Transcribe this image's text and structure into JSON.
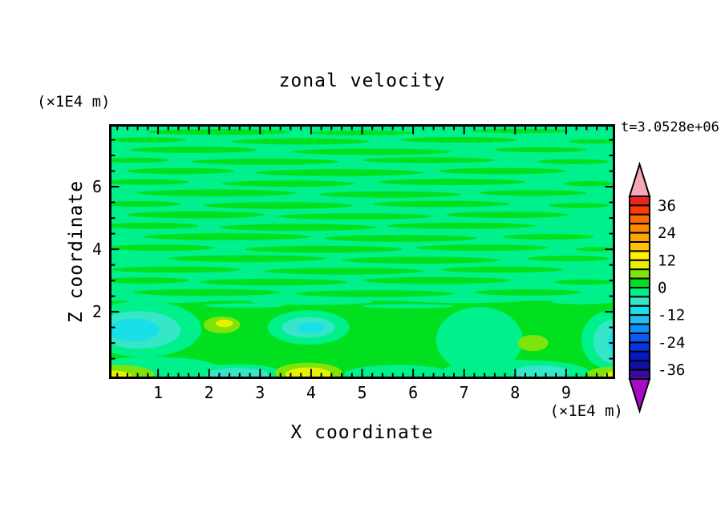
{
  "window": {
    "background": "#FFFFFF"
  },
  "chart_data": {
    "type": "filled_contour",
    "title": "zonal velocity",
    "xlabel": "X coordinate",
    "ylabel": "Z coordinate",
    "annotations": {
      "time_label": "t=3.0528e+06",
      "x_axis_unit": "(×1E4 m)",
      "y_axis_unit": "(×1E4 m)"
    },
    "axes": {
      "xlim": [
        0.04,
        9.96
      ],
      "zlim": [
        -0.15,
        8.0
      ],
      "x_major_ticks": [
        1,
        2,
        3,
        4,
        5,
        6,
        7,
        8,
        9
      ],
      "x_tick_labels": [
        "1",
        "2",
        "3",
        "4",
        "5",
        "6",
        "7",
        "8",
        "9"
      ],
      "x_minor_step": 0.2,
      "y_major_ticks": [
        2,
        4,
        6
      ],
      "y_tick_labels": [
        "2",
        "4",
        "6"
      ],
      "y_minor_step": 0.5,
      "frame_color": "#000000",
      "grid": false
    },
    "colorbar": {
      "levels_min": -40,
      "levels_max": 40,
      "step": 4,
      "labeled_values": [
        36,
        24,
        12,
        0,
        -12,
        -24,
        -36
      ],
      "labels": [
        "36",
        "24",
        "12",
        "0",
        "-12",
        "-24",
        "-36"
      ],
      "band_colors_top_to_bottom": [
        "#EE2222",
        "#FB3B00",
        "#FF6C00",
        "#FF8800",
        "#FFA600",
        "#FFC300",
        "#FFEF00",
        "#E8F200",
        "#7FE40A",
        "#00E01E",
        "#00F08C",
        "#35E6C8",
        "#18DFE8",
        "#23BFF2",
        "#0F8FF8",
        "#0A5BEF",
        "#0634E0",
        "#0519C9",
        "#140FA8",
        "#3A0C9E"
      ],
      "over_color": "#F7A8B8",
      "under_color": "#A90AC9",
      "outline_color": "#000000"
    },
    "field": {
      "background_band": -4,
      "layers": [
        {
          "band": 0,
          "shape": "rect",
          "r": [
            -0.2,
            -0.2,
            10.2,
            2.35
          ]
        },
        {
          "band": -4,
          "shape": "ellipse",
          "e": [
            1.2,
            2.38,
            0.9,
            0.1
          ]
        },
        {
          "band": -4,
          "shape": "ellipse",
          "e": [
            4.0,
            2.32,
            1.2,
            0.1
          ]
        },
        {
          "band": -4,
          "shape": "ellipse",
          "e": [
            7.0,
            2.38,
            1.25,
            0.1
          ]
        },
        {
          "band": -4,
          "shape": "ellipse",
          "e": [
            9.3,
            2.32,
            0.6,
            0.08
          ]
        },
        {
          "band": -4,
          "shape": "ellipse",
          "e": [
            2.7,
            2.2,
            0.8,
            0.07
          ]
        },
        {
          "band": -4,
          "shape": "ellipse",
          "e": [
            5.9,
            2.18,
            0.9,
            0.07
          ]
        },
        {
          "band": 0,
          "shape": "ellipse",
          "e": [
            2.2,
            7.75,
            1.4,
            0.09
          ]
        },
        {
          "band": 0,
          "shape": "ellipse",
          "e": [
            5.0,
            7.72,
            1.0,
            0.08
          ]
        },
        {
          "band": 0,
          "shape": "ellipse",
          "e": [
            8.1,
            7.78,
            0.95,
            0.07
          ]
        },
        {
          "band": 0,
          "shape": "ellipse",
          "e": [
            0.8,
            7.5,
            0.75,
            0.08
          ]
        },
        {
          "band": 0,
          "shape": "ellipse",
          "e": [
            3.8,
            7.45,
            1.35,
            0.1
          ]
        },
        {
          "band": 0,
          "shape": "ellipse",
          "e": [
            6.9,
            7.5,
            1.15,
            0.09
          ]
        },
        {
          "band": 0,
          "shape": "ellipse",
          "e": [
            9.55,
            7.45,
            0.5,
            0.07
          ]
        },
        {
          "band": 0,
          "shape": "ellipse",
          "e": [
            1.7,
            7.18,
            1.25,
            0.1
          ]
        },
        {
          "band": 0,
          "shape": "ellipse",
          "e": [
            5.2,
            7.12,
            1.55,
            0.1
          ]
        },
        {
          "band": 0,
          "shape": "ellipse",
          "e": [
            8.5,
            7.18,
            0.9,
            0.08
          ]
        },
        {
          "band": 0,
          "shape": "ellipse",
          "e": [
            0.55,
            6.85,
            0.65,
            0.08
          ]
        },
        {
          "band": 0,
          "shape": "ellipse",
          "e": [
            3.1,
            6.8,
            1.45,
            0.1
          ]
        },
        {
          "band": 0,
          "shape": "ellipse",
          "e": [
            6.3,
            6.85,
            1.3,
            0.09
          ]
        },
        {
          "band": 0,
          "shape": "ellipse",
          "e": [
            9.15,
            6.8,
            0.7,
            0.08
          ]
        },
        {
          "band": 0,
          "shape": "ellipse",
          "e": [
            1.45,
            6.5,
            1.05,
            0.1
          ]
        },
        {
          "band": 0,
          "shape": "ellipse",
          "e": [
            4.55,
            6.45,
            1.65,
            0.11
          ]
        },
        {
          "band": 0,
          "shape": "ellipse",
          "e": [
            7.75,
            6.5,
            1.25,
            0.1
          ]
        },
        {
          "band": 0,
          "shape": "ellipse",
          "e": [
            0.75,
            6.15,
            0.85,
            0.09
          ]
        },
        {
          "band": 0,
          "shape": "ellipse",
          "e": [
            3.55,
            6.1,
            1.3,
            0.1
          ]
        },
        {
          "band": 0,
          "shape": "ellipse",
          "e": [
            6.75,
            6.15,
            1.45,
            0.1
          ]
        },
        {
          "band": 0,
          "shape": "ellipse",
          "e": [
            9.45,
            6.1,
            0.5,
            0.08
          ]
        },
        {
          "band": 0,
          "shape": "ellipse",
          "e": [
            2.15,
            5.8,
            1.55,
            0.11
          ]
        },
        {
          "band": 0,
          "shape": "ellipse",
          "e": [
            5.55,
            5.75,
            1.4,
            0.1
          ]
        },
        {
          "band": 0,
          "shape": "ellipse",
          "e": [
            8.35,
            5.8,
            1.05,
            0.09
          ]
        },
        {
          "band": 0,
          "shape": "ellipse",
          "e": [
            0.65,
            5.45,
            0.8,
            0.09
          ]
        },
        {
          "band": 0,
          "shape": "ellipse",
          "e": [
            3.35,
            5.4,
            1.45,
            0.11
          ]
        },
        {
          "band": 0,
          "shape": "ellipse",
          "e": [
            6.55,
            5.45,
            1.35,
            0.1
          ]
        },
        {
          "band": 0,
          "shape": "ellipse",
          "e": [
            9.25,
            5.4,
            0.6,
            0.08
          ]
        },
        {
          "band": 0,
          "shape": "ellipse",
          "e": [
            1.75,
            5.1,
            1.35,
            0.11
          ]
        },
        {
          "band": 0,
          "shape": "ellipse",
          "e": [
            4.85,
            5.05,
            1.5,
            0.1
          ]
        },
        {
          "band": 0,
          "shape": "ellipse",
          "e": [
            7.85,
            5.1,
            1.2,
            0.1
          ]
        },
        {
          "band": 0,
          "shape": "ellipse",
          "e": [
            0.85,
            4.75,
            0.95,
            0.1
          ]
        },
        {
          "band": 0,
          "shape": "ellipse",
          "e": [
            3.75,
            4.7,
            1.55,
            0.11
          ]
        },
        {
          "band": 0,
          "shape": "ellipse",
          "e": [
            6.95,
            4.75,
            1.45,
            0.1
          ]
        },
        {
          "band": 0,
          "shape": "ellipse",
          "e": [
            2.35,
            4.4,
            1.65,
            0.11
          ]
        },
        {
          "band": 0,
          "shape": "ellipse",
          "e": [
            5.75,
            4.35,
            1.5,
            0.11
          ]
        },
        {
          "band": 0,
          "shape": "ellipse",
          "e": [
            8.65,
            4.4,
            0.9,
            0.09
          ]
        },
        {
          "band": 0,
          "shape": "ellipse",
          "e": [
            1.05,
            4.05,
            1.05,
            0.1
          ]
        },
        {
          "band": 0,
          "shape": "ellipse",
          "e": [
            4.25,
            4.0,
            1.55,
            0.11
          ]
        },
        {
          "band": 0,
          "shape": "ellipse",
          "e": [
            7.35,
            4.05,
            1.3,
            0.1
          ]
        },
        {
          "band": 0,
          "shape": "ellipse",
          "e": [
            9.6,
            4.0,
            0.4,
            0.07
          ]
        },
        {
          "band": 0,
          "shape": "ellipse",
          "e": [
            2.75,
            3.7,
            1.55,
            0.11
          ]
        },
        {
          "band": 0,
          "shape": "ellipse",
          "e": [
            6.15,
            3.65,
            1.55,
            0.11
          ]
        },
        {
          "band": 0,
          "shape": "ellipse",
          "e": [
            9.05,
            3.7,
            0.8,
            0.09
          ]
        },
        {
          "band": 0,
          "shape": "ellipse",
          "e": [
            1.35,
            3.35,
            1.25,
            0.1
          ]
        },
        {
          "band": 0,
          "shape": "ellipse",
          "e": [
            4.65,
            3.3,
            1.55,
            0.11
          ]
        },
        {
          "band": 0,
          "shape": "ellipse",
          "e": [
            7.75,
            3.35,
            1.2,
            0.1
          ]
        },
        {
          "band": 0,
          "shape": "ellipse",
          "e": [
            0.75,
            3.0,
            0.85,
            0.1
          ]
        },
        {
          "band": 0,
          "shape": "ellipse",
          "e": [
            3.25,
            2.95,
            1.45,
            0.11
          ]
        },
        {
          "band": 0,
          "shape": "ellipse",
          "e": [
            6.45,
            3.0,
            1.45,
            0.11
          ]
        },
        {
          "band": 0,
          "shape": "ellipse",
          "e": [
            9.35,
            2.95,
            0.6,
            0.08
          ]
        },
        {
          "band": 0,
          "shape": "ellipse",
          "e": [
            1.95,
            2.62,
            1.45,
            0.11
          ]
        },
        {
          "band": 0,
          "shape": "ellipse",
          "e": [
            5.25,
            2.58,
            1.55,
            0.11
          ]
        },
        {
          "band": 0,
          "shape": "ellipse",
          "e": [
            8.25,
            2.62,
            1.05,
            0.1
          ]
        },
        {
          "band": -4,
          "shape": "ellipse",
          "e": [
            0.9,
            0.18,
            1.3,
            0.38
          ]
        },
        {
          "band": -4,
          "shape": "ellipse",
          "e": [
            0.7,
            1.45,
            1.15,
            0.9
          ]
        },
        {
          "band": -4,
          "shape": "ellipse",
          "e": [
            3.95,
            1.5,
            0.8,
            0.55
          ]
        },
        {
          "band": -4,
          "shape": "ellipse",
          "e": [
            7.3,
            1.1,
            0.85,
            1.05
          ]
        },
        {
          "band": -4,
          "shape": "ellipse",
          "e": [
            9.9,
            1.1,
            0.6,
            0.95
          ]
        },
        {
          "band": -4,
          "shape": "ellipse",
          "e": [
            8.0,
            0.08,
            1.45,
            0.38
          ]
        },
        {
          "band": -4,
          "shape": "ellipse",
          "e": [
            2.55,
            0.02,
            0.9,
            0.3
          ]
        },
        {
          "band": -4,
          "shape": "ellipse",
          "e": [
            5.7,
            0.0,
            1.05,
            0.3
          ]
        },
        {
          "band": -8,
          "shape": "ellipse",
          "e": [
            0.62,
            1.42,
            0.82,
            0.6
          ]
        },
        {
          "band": -8,
          "shape": "ellipse",
          "e": [
            3.95,
            1.5,
            0.52,
            0.33
          ]
        },
        {
          "band": -8,
          "shape": "ellipse",
          "e": [
            8.5,
            0.06,
            0.55,
            0.22
          ]
        },
        {
          "band": -8,
          "shape": "ellipse",
          "e": [
            9.95,
            1.05,
            0.42,
            0.7
          ]
        },
        {
          "band": -8,
          "shape": "ellipse",
          "e": [
            2.55,
            0.0,
            0.62,
            0.2
          ]
        },
        {
          "band": -12,
          "shape": "ellipse",
          "e": [
            0.52,
            1.42,
            0.5,
            0.36
          ]
        },
        {
          "band": -12,
          "shape": "ellipse",
          "e": [
            4.0,
            1.5,
            0.26,
            0.17
          ]
        },
        {
          "band": -12,
          "shape": "ellipse",
          "e": [
            10.02,
            1.05,
            0.2,
            0.42
          ]
        },
        {
          "band": 4,
          "shape": "ellipse",
          "e": [
            0.22,
            0.0,
            0.7,
            0.3
          ]
        },
        {
          "band": 4,
          "shape": "ellipse",
          "e": [
            2.25,
            1.58,
            0.36,
            0.27
          ]
        },
        {
          "band": 4,
          "shape": "ellipse",
          "e": [
            3.95,
            0.05,
            0.66,
            0.32
          ]
        },
        {
          "band": 4,
          "shape": "ellipse",
          "e": [
            8.35,
            1.0,
            0.3,
            0.26
          ]
        },
        {
          "band": 4,
          "shape": "ellipse",
          "e": [
            9.9,
            0.0,
            0.5,
            0.24
          ]
        },
        {
          "band": 8,
          "shape": "ellipse",
          "e": [
            0.1,
            -0.04,
            0.38,
            0.16
          ]
        },
        {
          "band": 8,
          "shape": "ellipse",
          "e": [
            3.95,
            0.0,
            0.45,
            0.22
          ]
        },
        {
          "band": 8,
          "shape": "ellipse",
          "e": [
            10.0,
            -0.04,
            0.26,
            0.14
          ]
        },
        {
          "band": 8,
          "shape": "ellipse",
          "e": [
            2.3,
            1.63,
            0.17,
            0.12
          ]
        }
      ]
    }
  }
}
